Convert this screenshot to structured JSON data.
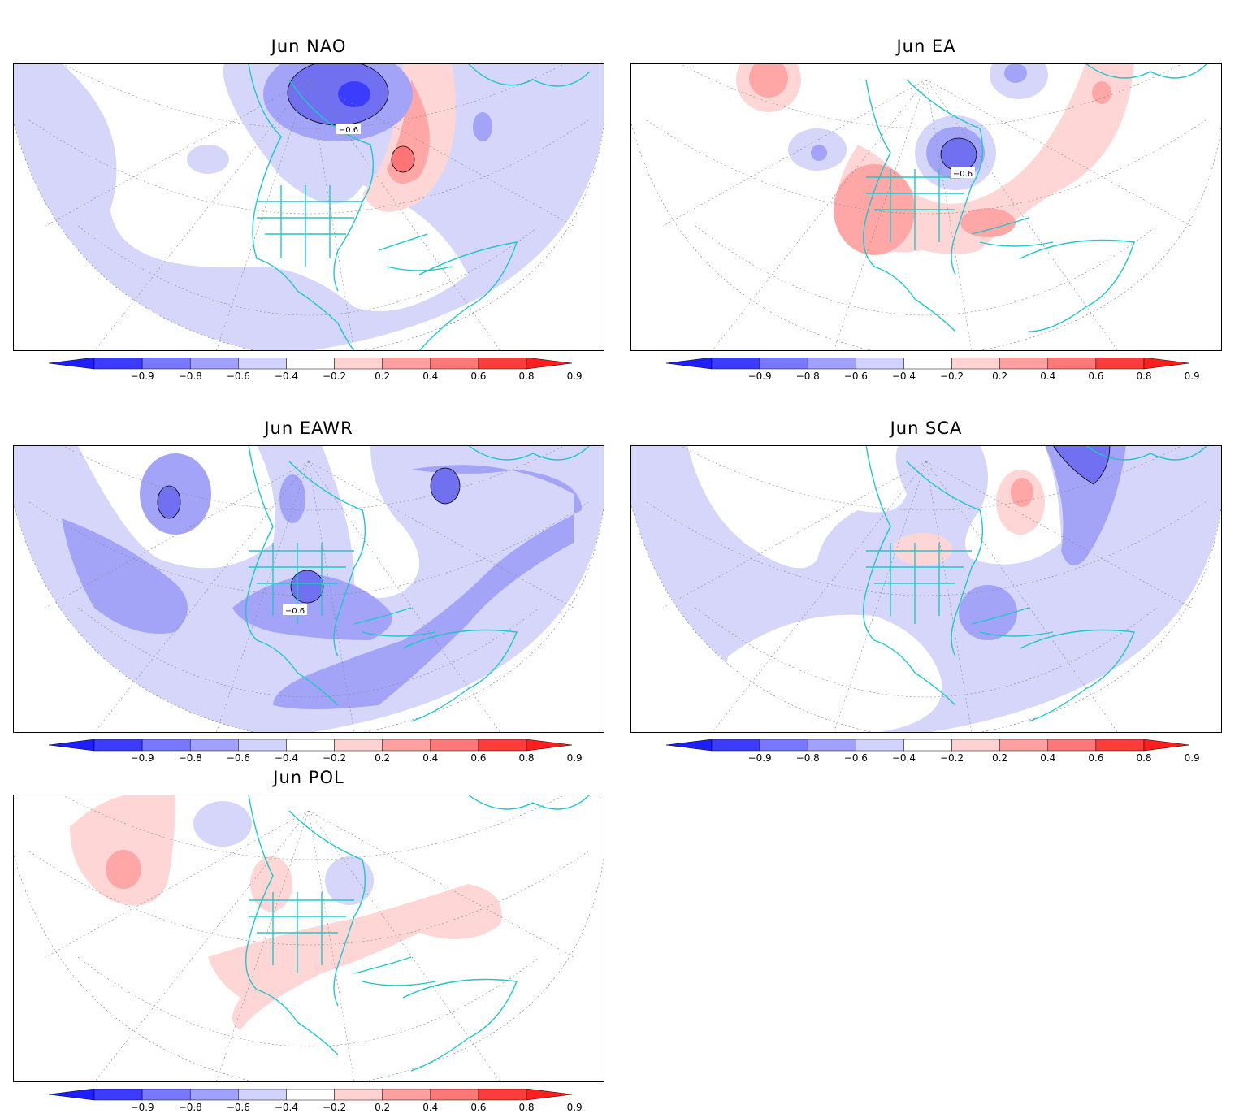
{
  "panels": [
    {
      "title": "Jun  NAO",
      "contour_label": "−0.6"
    },
    {
      "title": "Jun  EA",
      "contour_label": "−0.6"
    },
    {
      "title": "Jun  EAWR",
      "contour_label": "−0.6"
    },
    {
      "title": "Jun  SCA",
      "contour_label": ""
    },
    {
      "title": "Jun  POL",
      "contour_label": ""
    }
  ],
  "colorbar": {
    "levels": [
      "−0.9",
      "−0.8",
      "−0.6",
      "−0.4",
      "−0.2",
      "0.2",
      "0.4",
      "0.6",
      "0.8",
      "0.9"
    ],
    "colors": [
      "#1e1eff",
      "#3c3cff",
      "#7878ff",
      "#a0a0ff",
      "#d2d2ff",
      "#ffffff",
      "#ffd2d2",
      "#ffa0a0",
      "#ff7878",
      "#ff3c3c",
      "#ff1e1e"
    ]
  },
  "colors": {
    "coastline": "#1ec8c8",
    "neg_light": "#d6d6fa",
    "neg_mid": "#a3a3f8",
    "neg_strong": "#7070f0",
    "pos_light": "#ffd6d6",
    "pos_mid": "#ffa6a6",
    "pos_strong": "#ff7474"
  }
}
